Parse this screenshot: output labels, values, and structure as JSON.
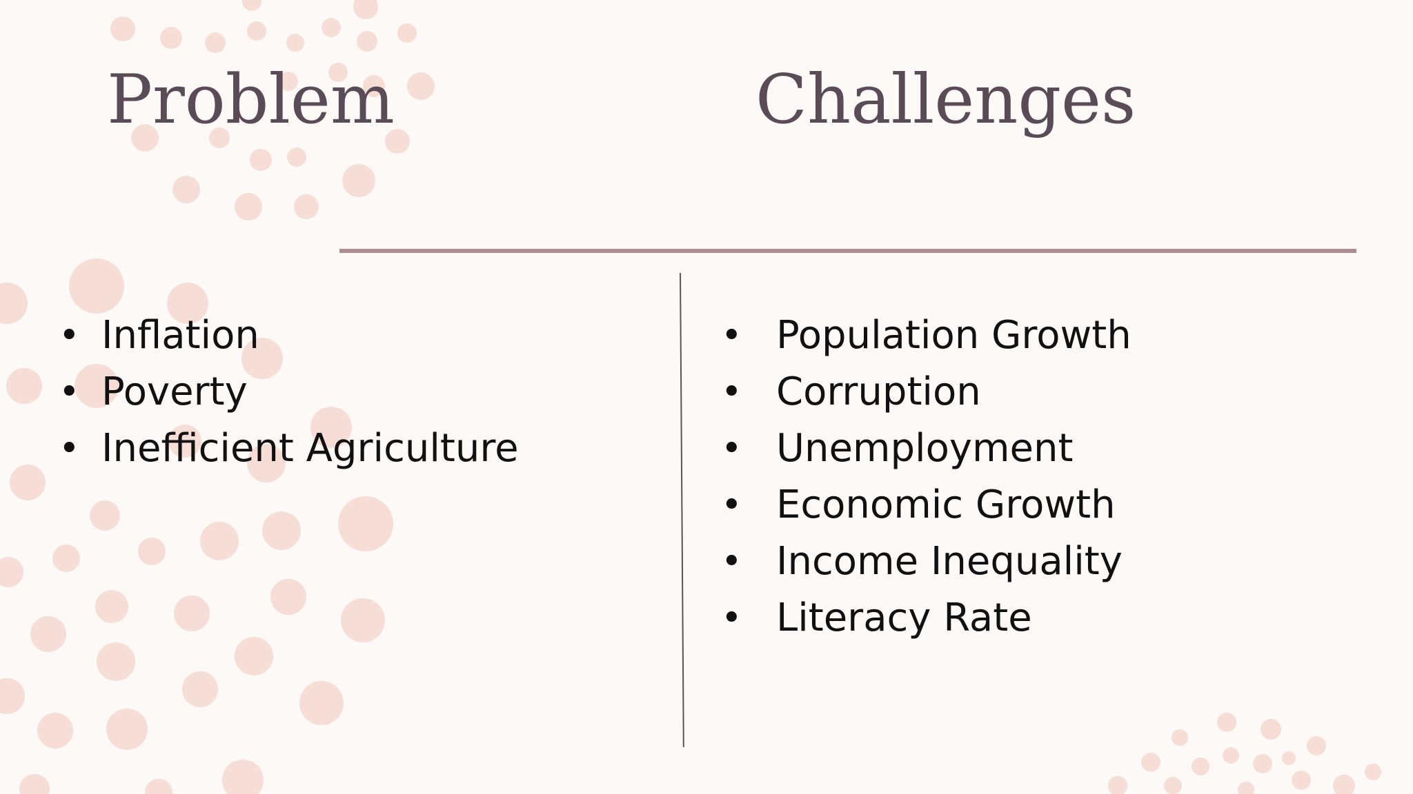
{
  "slide": {
    "left": {
      "title": "Problem",
      "items": [
        "Inflation",
        "Poverty",
        "Inefficient Agriculture"
      ]
    },
    "right": {
      "title": "Challenges",
      "items": [
        "Population Growth",
        "Corruption",
        "Unemployment",
        "Economic Growth",
        "Income Inequality",
        "Literacy Rate"
      ]
    },
    "bullet_glyph": "•"
  },
  "colors": {
    "background": "#fdf9f7",
    "title": "#5a4c56",
    "divider": "#b08a92",
    "dot": "#f5d7cf"
  }
}
